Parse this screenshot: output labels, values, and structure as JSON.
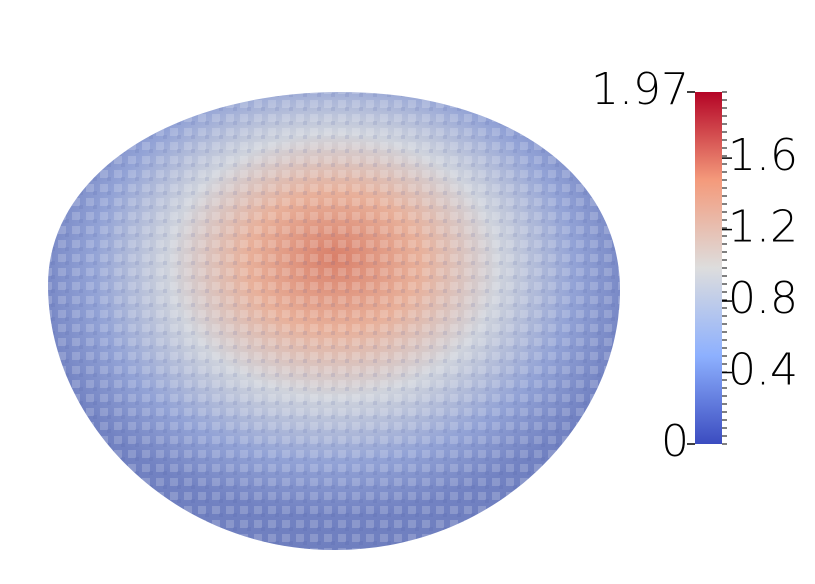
{
  "colorbar": {
    "range": [
      0,
      1.97
    ],
    "ticks": [
      0.4,
      0.8,
      1.2,
      1.6
    ]
  }
}
